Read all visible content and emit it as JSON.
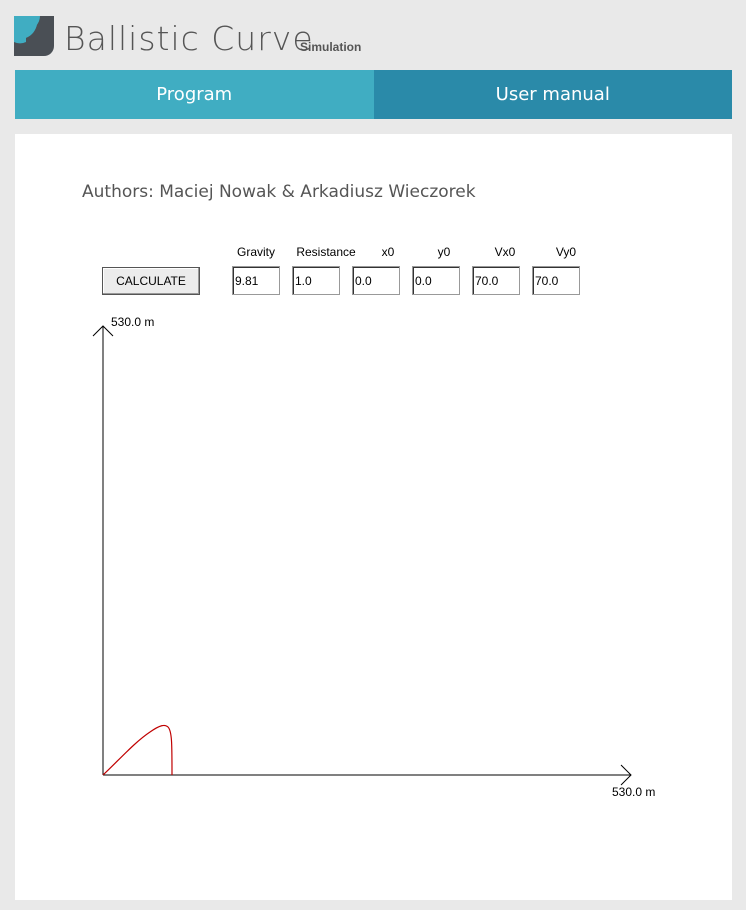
{
  "header": {
    "title": "Ballistic Curve",
    "subtitle": "Simulation",
    "logo": "app-logo-icon"
  },
  "nav": {
    "tabs": [
      {
        "label": "Program"
      },
      {
        "label": "User manual"
      }
    ]
  },
  "main": {
    "authors": "Authors: Maciej Nowak & Arkadiusz Wieczorek",
    "calculate_label": "CALCULATE",
    "fields": [
      {
        "label": "Gravity",
        "value": "9.81"
      },
      {
        "label": "Resistance",
        "value": "1.0"
      },
      {
        "label": "x0",
        "value": "0.0"
      },
      {
        "label": "y0",
        "value": "0.0"
      },
      {
        "label": "Vx0",
        "value": "70.0"
      },
      {
        "label": "Vy0",
        "value": "70.0"
      }
    ],
    "plot": {
      "y_axis_label": "530.0 m",
      "x_axis_label": "530.0 m",
      "curve_color": "#c00000"
    }
  }
}
